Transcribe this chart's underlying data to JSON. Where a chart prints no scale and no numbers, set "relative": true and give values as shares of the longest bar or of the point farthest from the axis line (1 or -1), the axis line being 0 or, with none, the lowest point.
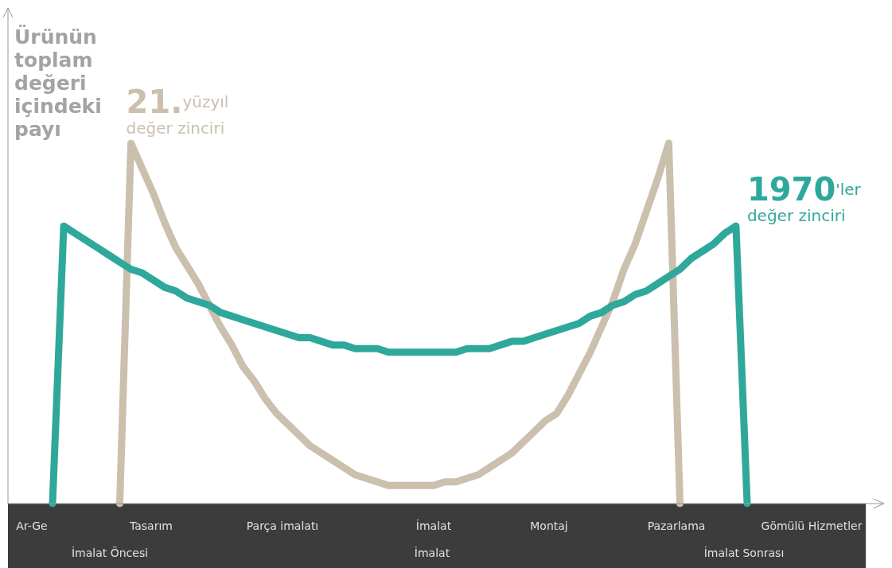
{
  "chart_data": {
    "type": "line",
    "relative": true,
    "ylabel": "Ürünün toplam değeri içindeki payı",
    "marker": "none",
    "legend": false,
    "grid": false,
    "categories": [
      null,
      null,
      null,
      null,
      null,
      null,
      null,
      null,
      null,
      null,
      null,
      null,
      null,
      null,
      null,
      null,
      null,
      null,
      null,
      null,
      null,
      null,
      null,
      null,
      null,
      null,
      null,
      null,
      null,
      null,
      null,
      null,
      null,
      null,
      null,
      null,
      null,
      null,
      null,
      null,
      null,
      null,
      null,
      null,
      null,
      null,
      null,
      null,
      null,
      null,
      null,
      null,
      null,
      null,
      null,
      null,
      null,
      null,
      null,
      null,
      null,
      null,
      null
    ],
    "annotations": [
      "Ar-Ge",
      "Tasarım",
      "Parça imalatı",
      "İmalat",
      "Montaj",
      "Pazarlama",
      "Gömülü Hizmetler",
      "İmalat Öncesi",
      "İmalat",
      "İmalat Sonrası"
    ],
    "series": [
      {
        "name": "1970'ler değer zinciri",
        "color": "#2fa89c",
        "values": [
          0,
          0.77,
          0.75,
          0.73,
          0.71,
          0.69,
          0.67,
          0.65,
          0.64,
          0.62,
          0.6,
          0.59,
          0.57,
          0.56,
          0.55,
          0.53,
          0.52,
          0.51,
          0.5,
          0.49,
          0.48,
          0.47,
          0.46,
          0.46,
          0.45,
          0.44,
          0.44,
          0.43,
          0.43,
          0.43,
          0.42,
          0.42,
          0.42,
          0.42,
          0.42,
          0.42,
          0.42,
          0.43,
          0.43,
          0.43,
          0.44,
          0.45,
          0.45,
          0.46,
          0.47,
          0.48,
          0.49,
          0.5,
          0.52,
          0.53,
          0.55,
          0.56,
          0.58,
          0.59,
          0.61,
          0.63,
          0.65,
          0.68,
          0.7,
          0.72,
          0.75,
          0.77,
          0
        ]
      },
      {
        "name": "21.yüzyıl değer zinciri",
        "color": "#cbbfae",
        "values": [
          null,
          null,
          null,
          null,
          null,
          null,
          0,
          1,
          0.93,
          0.86,
          0.78,
          0.71,
          0.66,
          0.61,
          0.55,
          0.49,
          0.44,
          0.38,
          0.34,
          0.29,
          0.25,
          0.22,
          0.19,
          0.16,
          0.14,
          0.12,
          0.1,
          0.08,
          0.07,
          0.06,
          0.05,
          0.05,
          0.05,
          0.05,
          0.05,
          0.06,
          0.06,
          0.07,
          0.08,
          0.1,
          0.12,
          0.14,
          0.17,
          0.2,
          0.23,
          0.25,
          0.3,
          0.36,
          0.42,
          0.49,
          0.56,
          0.65,
          0.72,
          0.81,
          0.9,
          1,
          0,
          null,
          null,
          null,
          null,
          null,
          null
        ]
      }
    ]
  }
}
